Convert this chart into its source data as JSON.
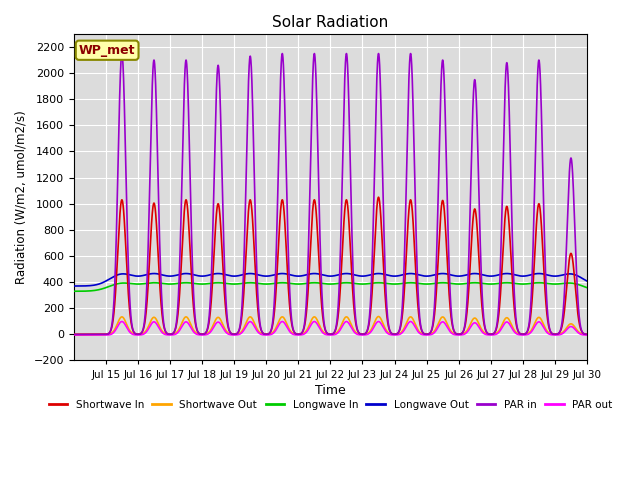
{
  "title": "Solar Radiation",
  "xlabel": "Time",
  "ylabel": "Radiation (W/m2, umol/m2/s)",
  "ylim": [
    -200,
    2300
  ],
  "yticks": [
    -200,
    0,
    200,
    400,
    600,
    800,
    1000,
    1200,
    1400,
    1600,
    1800,
    2000,
    2200
  ],
  "xlim_days": [
    14.0,
    30.0
  ],
  "station_label": "WP_met",
  "bg_color": "#dcdcdc",
  "series_colors": {
    "shortwave_in": "#dd0000",
    "shortwave_out": "#ffa500",
    "longwave_in": "#00cc00",
    "longwave_out": "#0000cc",
    "par_in": "#9900cc",
    "par_out": "#ff00ff"
  },
  "legend": [
    {
      "label": "Shortwave In",
      "color": "#dd0000"
    },
    {
      "label": "Shortwave Out",
      "color": "#ffa500"
    },
    {
      "label": "Longwave In",
      "color": "#00cc00"
    },
    {
      "label": "Longwave Out",
      "color": "#0000cc"
    },
    {
      "label": "PAR in",
      "color": "#9900cc"
    },
    {
      "label": "PAR out",
      "color": "#ff00ff"
    }
  ],
  "figsize": [
    6.4,
    4.8
  ],
  "dpi": 100
}
